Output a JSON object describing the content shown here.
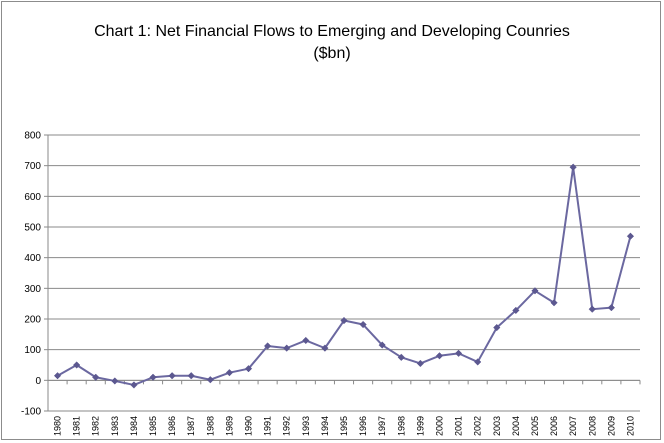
{
  "chart_data": {
    "type": "line",
    "title_line1": "Chart 1: Net Financial Flows to Emerging and Developing Counries",
    "title_line2": "($bn)",
    "xlabel": "",
    "ylabel": "",
    "ylim": [
      -100,
      800
    ],
    "yticks": [
      -100,
      0,
      100,
      200,
      300,
      400,
      500,
      600,
      700,
      800
    ],
    "grid": true,
    "legend": "none",
    "line_color": "#6b68a0",
    "marker_color": "#5c5890",
    "categories": [
      "1980",
      "1981",
      "1982",
      "1983",
      "1984",
      "1985",
      "1986",
      "1987",
      "1988",
      "1989",
      "1990",
      "1991",
      "1992",
      "1993",
      "1994",
      "1995",
      "1996",
      "1997",
      "1998",
      "1999",
      "2000",
      "2001",
      "2002",
      "2003",
      "2004",
      "2005",
      "2006",
      "2007",
      "2008",
      "2009",
      "2010"
    ],
    "series": [
      {
        "values": [
          15,
          50,
          10,
          -2,
          -15,
          10,
          15,
          15,
          2,
          25,
          38,
          112,
          105,
          130,
          105,
          195,
          182,
          115,
          75,
          55,
          80,
          88,
          60,
          172,
          228,
          292,
          253,
          695,
          232,
          237,
          470
        ]
      }
    ]
  }
}
